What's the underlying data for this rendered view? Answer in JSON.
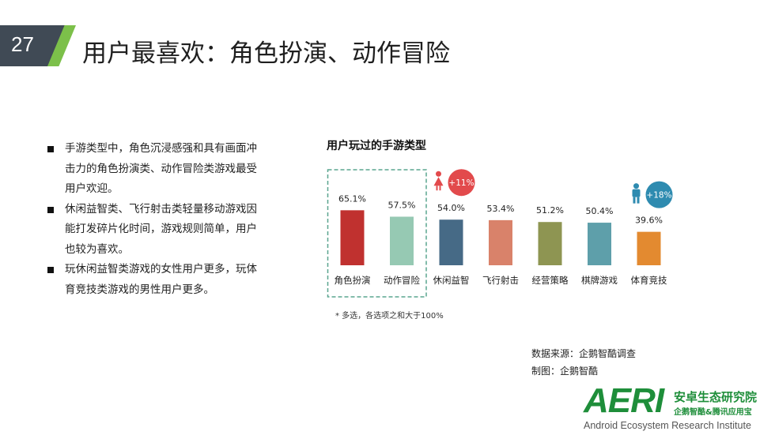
{
  "slide": {
    "number": "27",
    "title": "用户最喜欢：角色扮演、动作冒险"
  },
  "bullets": [
    "手游类型中，角色沉浸感强和具有画面冲击力的角色扮演类、动作冒险类游戏最受用户欢迎。",
    "休闲益智类、飞行射击类轻量移动游戏因能打发碎片化时间，游戏规则简单，用户也较为喜欢。",
    "玩休闲益智类游戏的女性用户更多，玩体育竞技类游戏的男性用户更多。"
  ],
  "chart_data": {
    "type": "bar",
    "title": "用户玩过的手游类型",
    "categories": [
      "角色扮演",
      "动作冒险",
      "休闲益智",
      "飞行射击",
      "经营策略",
      "棋牌游戏",
      "体育竞技"
    ],
    "values": [
      65.1,
      57.5,
      54.0,
      53.4,
      51.2,
      50.4,
      39.6
    ],
    "value_labels": [
      "65.1%",
      "57.5%",
      "54.0%",
      "53.4%",
      "51.2%",
      "50.4%",
      "39.6%"
    ],
    "colors": [
      "#c0312f",
      "#96c9b3",
      "#466a86",
      "#d9826a",
      "#8e9552",
      "#5e9faa",
      "#e38a30"
    ],
    "highlight_box": {
      "categories": [
        "角色扮演",
        "动作冒险"
      ],
      "color": "#5aa58f"
    },
    "annotations": [
      {
        "category": "休闲益智",
        "label": "+11%",
        "icon": "female-icon",
        "color": "#e24a4c"
      },
      {
        "category": "体育竞技",
        "label": "+18%",
        "icon": "male-icon",
        "color": "#2e8bb0"
      }
    ],
    "ylim": [
      0,
      100
    ],
    "grid": false
  },
  "footnote": "*  多选，各选项之和大于100%",
  "source": {
    "line1": "数据来源：企鹅智酷调查",
    "line2": "制图：企鹅智酷"
  },
  "logo": {
    "mark": "AERI",
    "cn_name": "安卓生态研究院",
    "cn_sub": "企鹅智酷&腾讯应用宝",
    "en_name": "Android Ecosystem Research Institute"
  }
}
